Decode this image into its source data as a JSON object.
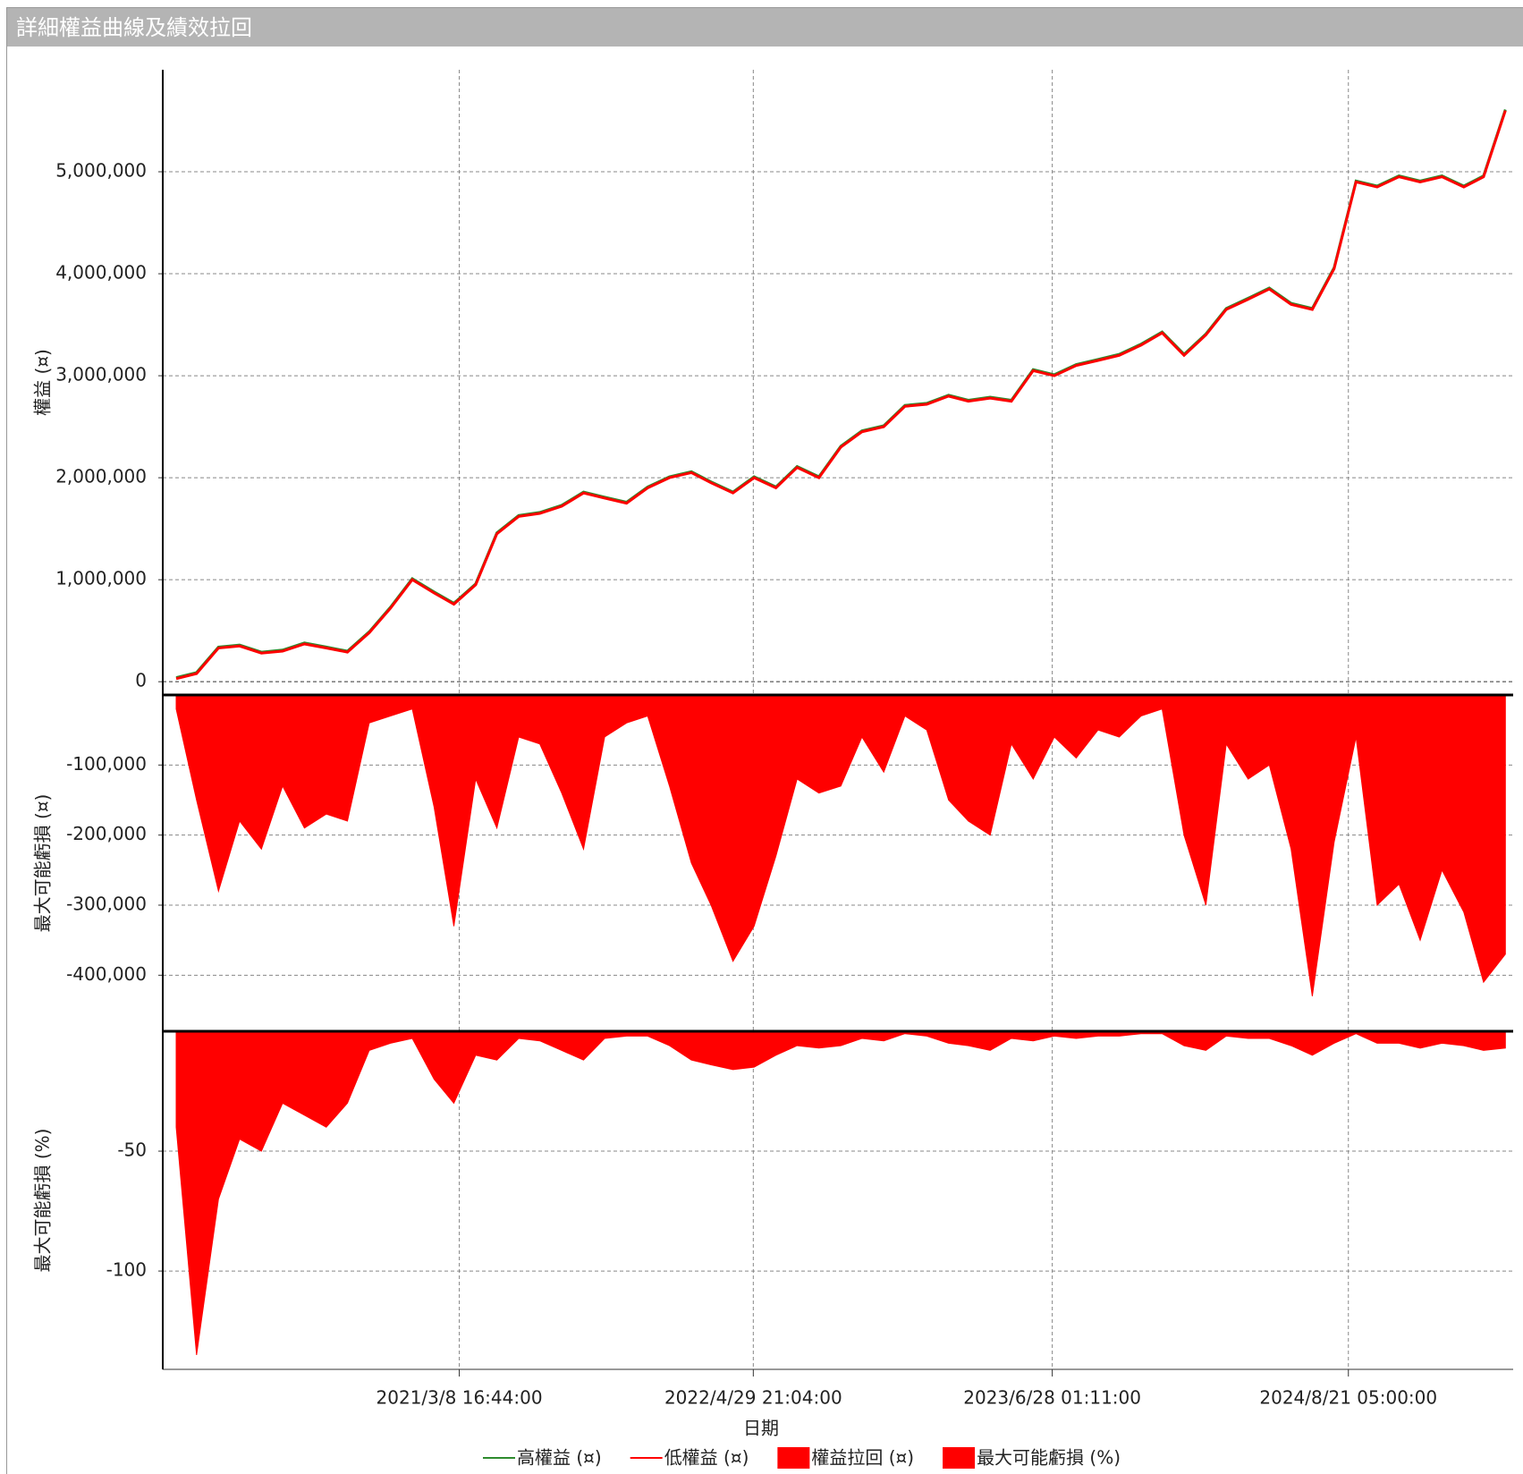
{
  "window": {
    "title": "詳細權益曲線及績效拉回"
  },
  "chart_data": [
    {
      "type": "line",
      "y_label": "權益 (¤)",
      "x": [
        "2020-02-01",
        "2020-03-01",
        "2020-04-01",
        "2020-05-01",
        "2020-06-01",
        "2020-07-01",
        "2020-08-01",
        "2020-09-01",
        "2020-10-01",
        "2020-11-01",
        "2020-12-01",
        "2021-01-01",
        "2021-02-01",
        "2021-03-01",
        "2021-04-01",
        "2021-05-01",
        "2021-06-01",
        "2021-07-01",
        "2021-08-01",
        "2021-09-01",
        "2021-10-01",
        "2021-11-01",
        "2021-12-01",
        "2022-01-01",
        "2022-02-01",
        "2022-03-01",
        "2022-04-01",
        "2022-05-01",
        "2022-06-01",
        "2022-07-01",
        "2022-08-01",
        "2022-09-01",
        "2022-10-01",
        "2022-11-01",
        "2022-12-01",
        "2023-01-01",
        "2023-02-01",
        "2023-03-01",
        "2023-04-01",
        "2023-05-01",
        "2023-06-01",
        "2023-07-01",
        "2023-08-01",
        "2023-09-01",
        "2023-10-01",
        "2023-11-01",
        "2023-12-01",
        "2024-01-01",
        "2024-02-01",
        "2024-03-01",
        "2024-04-01",
        "2024-05-01",
        "2024-06-01",
        "2024-07-01",
        "2024-08-01",
        "2024-09-01",
        "2024-10-01",
        "2024-11-01",
        "2024-12-01",
        "2025-01-01",
        "2025-02-01",
        "2025-03-01",
        "2025-04-01"
      ],
      "xlim": [
        "2020-01-13",
        "2025-04-12"
      ],
      "ylim": [
        -130000,
        6000000
      ],
      "yticks": [
        0,
        {
          "value": 1000000,
          "label": "1,000,000"
        },
        {
          "value": 2000000,
          "label": "2,000,000"
        },
        {
          "value": 3000000,
          "label": "3,000,000"
        },
        {
          "value": 4000000,
          "label": "4,000,000"
        },
        {
          "value": 5000000,
          "label": "5,000,000"
        }
      ],
      "grid": true,
      "series": [
        {
          "name": "高權益 (¤)",
          "color": "#2e8b2e",
          "values": [
            40000,
            90000,
            340000,
            360000,
            290000,
            310000,
            380000,
            340000,
            300000,
            490000,
            730000,
            1010000,
            880000,
            770000,
            960000,
            1460000,
            1630000,
            1660000,
            1730000,
            1860000,
            1810000,
            1760000,
            1910000,
            2010000,
            2060000,
            1960000,
            1860000,
            2010000,
            1910000,
            2110000,
            2010000,
            2310000,
            2460000,
            2510000,
            2710000,
            2730000,
            2810000,
            2760000,
            2790000,
            2760000,
            3060000,
            3010000,
            3110000,
            3160000,
            3210000,
            3310000,
            3430000,
            3210000,
            3410000,
            3660000,
            3760000,
            3860000,
            3710000,
            3660000,
            4060000,
            4910000,
            4860000,
            4960000,
            4910000,
            4960000,
            4860000,
            4960000,
            5610000
          ]
        },
        {
          "name": "低權益 (¤)",
          "color": "#ff0000",
          "values": [
            30000,
            80000,
            330000,
            350000,
            280000,
            300000,
            370000,
            330000,
            290000,
            480000,
            720000,
            1000000,
            870000,
            760000,
            950000,
            1450000,
            1620000,
            1650000,
            1720000,
            1850000,
            1800000,
            1750000,
            1900000,
            2000000,
            2050000,
            1950000,
            1850000,
            2000000,
            1900000,
            2100000,
            2000000,
            2300000,
            2450000,
            2500000,
            2700000,
            2720000,
            2800000,
            2750000,
            2780000,
            2750000,
            3050000,
            3000000,
            3100000,
            3150000,
            3200000,
            3300000,
            3420000,
            3200000,
            3400000,
            3650000,
            3750000,
            3850000,
            3700000,
            3650000,
            4050000,
            4900000,
            4850000,
            4950000,
            4900000,
            4950000,
            4850000,
            4950000,
            5600000
          ]
        }
      ]
    },
    {
      "type": "area",
      "y_label": "最大可能虧損 (¤)",
      "x": [
        "2020-02-01",
        "2020-03-01",
        "2020-04-01",
        "2020-05-01",
        "2020-06-01",
        "2020-07-01",
        "2020-08-01",
        "2020-09-01",
        "2020-10-01",
        "2020-11-01",
        "2020-12-01",
        "2021-01-01",
        "2021-02-01",
        "2021-03-01",
        "2021-04-01",
        "2021-05-01",
        "2021-06-01",
        "2021-07-01",
        "2021-08-01",
        "2021-09-01",
        "2021-10-01",
        "2021-11-01",
        "2021-12-01",
        "2022-01-01",
        "2022-02-01",
        "2022-03-01",
        "2022-04-01",
        "2022-05-01",
        "2022-06-01",
        "2022-07-01",
        "2022-08-01",
        "2022-09-01",
        "2022-10-01",
        "2022-11-01",
        "2022-12-01",
        "2023-01-01",
        "2023-02-01",
        "2023-03-01",
        "2023-04-01",
        "2023-05-01",
        "2023-06-01",
        "2023-07-01",
        "2023-08-01",
        "2023-09-01",
        "2023-10-01",
        "2023-11-01",
        "2023-12-01",
        "2024-01-01",
        "2024-02-01",
        "2024-03-01",
        "2024-04-01",
        "2024-05-01",
        "2024-06-01",
        "2024-07-01",
        "2024-08-01",
        "2024-09-01",
        "2024-10-01",
        "2024-11-01",
        "2024-12-01",
        "2025-01-01",
        "2025-02-01",
        "2025-03-01",
        "2025-04-01"
      ],
      "xlim": [
        "2020-01-13",
        "2025-04-12"
      ],
      "ylim": [
        -480000,
        0
      ],
      "yticks": [
        {
          "value": -100000,
          "label": "-100,000"
        },
        {
          "value": -200000,
          "label": "-200,000"
        },
        {
          "value": -300000,
          "label": "-300,000"
        },
        {
          "value": -400000,
          "label": "-400,000"
        }
      ],
      "grid": true,
      "series": [
        {
          "name": "權益拉回 (¤)",
          "color": "#ff0000",
          "values": [
            -20000,
            -150000,
            -280000,
            -180000,
            -220000,
            -130000,
            -190000,
            -170000,
            -180000,
            -40000,
            -30000,
            -20000,
            -160000,
            -330000,
            -120000,
            -190000,
            -60000,
            -70000,
            -140000,
            -220000,
            -60000,
            -40000,
            -30000,
            -130000,
            -240000,
            -300000,
            -380000,
            -330000,
            -230000,
            -120000,
            -140000,
            -130000,
            -60000,
            -110000,
            -30000,
            -50000,
            -150000,
            -180000,
            -200000,
            -70000,
            -120000,
            -60000,
            -90000,
            -50000,
            -60000,
            -30000,
            -20000,
            -200000,
            -300000,
            -70000,
            -120000,
            -100000,
            -220000,
            -430000,
            -210000,
            -60000,
            -300000,
            -270000,
            -350000,
            -250000,
            -310000,
            -410000,
            -370000
          ]
        }
      ]
    },
    {
      "type": "area",
      "y_label": "最大可能虧損 (%)",
      "x_label": "日期",
      "x": [
        "2020-02-01",
        "2020-03-01",
        "2020-04-01",
        "2020-05-01",
        "2020-06-01",
        "2020-07-01",
        "2020-08-01",
        "2020-09-01",
        "2020-10-01",
        "2020-11-01",
        "2020-12-01",
        "2021-01-01",
        "2021-02-01",
        "2021-03-01",
        "2021-04-01",
        "2021-05-01",
        "2021-06-01",
        "2021-07-01",
        "2021-08-01",
        "2021-09-01",
        "2021-10-01",
        "2021-11-01",
        "2021-12-01",
        "2022-01-01",
        "2022-02-01",
        "2022-03-01",
        "2022-04-01",
        "2022-05-01",
        "2022-06-01",
        "2022-07-01",
        "2022-08-01",
        "2022-09-01",
        "2022-10-01",
        "2022-11-01",
        "2022-12-01",
        "2023-01-01",
        "2023-02-01",
        "2023-03-01",
        "2023-04-01",
        "2023-05-01",
        "2023-06-01",
        "2023-07-01",
        "2023-08-01",
        "2023-09-01",
        "2023-10-01",
        "2023-11-01",
        "2023-12-01",
        "2024-01-01",
        "2024-02-01",
        "2024-03-01",
        "2024-04-01",
        "2024-05-01",
        "2024-06-01",
        "2024-07-01",
        "2024-08-01",
        "2024-09-01",
        "2024-10-01",
        "2024-11-01",
        "2024-12-01",
        "2025-01-01",
        "2025-02-01",
        "2025-03-01",
        "2025-04-01"
      ],
      "xlim": [
        "2020-01-13",
        "2025-04-12"
      ],
      "xticks": [
        {
          "value": "2021-03-08T16:44:00",
          "label": "2021/3/8 16:44:00"
        },
        {
          "value": "2022-04-29T21:04:00",
          "label": "2022/4/29 21:04:00"
        },
        {
          "value": "2023-06-28T01:11:00",
          "label": "2023/6/28 01:11:00"
        },
        {
          "value": "2024-08-21T05:00:00",
          "label": "2024/8/21 05:00:00"
        }
      ],
      "ylim": [
        -141,
        0
      ],
      "yticks": [
        -50,
        -100
      ],
      "grid": true,
      "series": [
        {
          "name": "最大可能虧損 (%)",
          "color": "#ff0000",
          "values": [
            -40,
            -135,
            -70,
            -45,
            -50,
            -30,
            -35,
            -40,
            -30,
            -8,
            -5,
            -3,
            -20,
            -30,
            -10,
            -12,
            -3,
            -4,
            -8,
            -12,
            -3,
            -2,
            -2,
            -6,
            -12,
            -14,
            -16,
            -15,
            -10,
            -6,
            -7,
            -6,
            -3,
            -4,
            -1,
            -2,
            -5,
            -6,
            -8,
            -3,
            -4,
            -2,
            -3,
            -2,
            -2,
            -1,
            -1,
            -6,
            -8,
            -2,
            -3,
            -3,
            -6,
            -10,
            -5,
            -1,
            -5,
            -5,
            -7,
            -5,
            -6,
            -8,
            -7
          ]
        }
      ]
    }
  ]
}
